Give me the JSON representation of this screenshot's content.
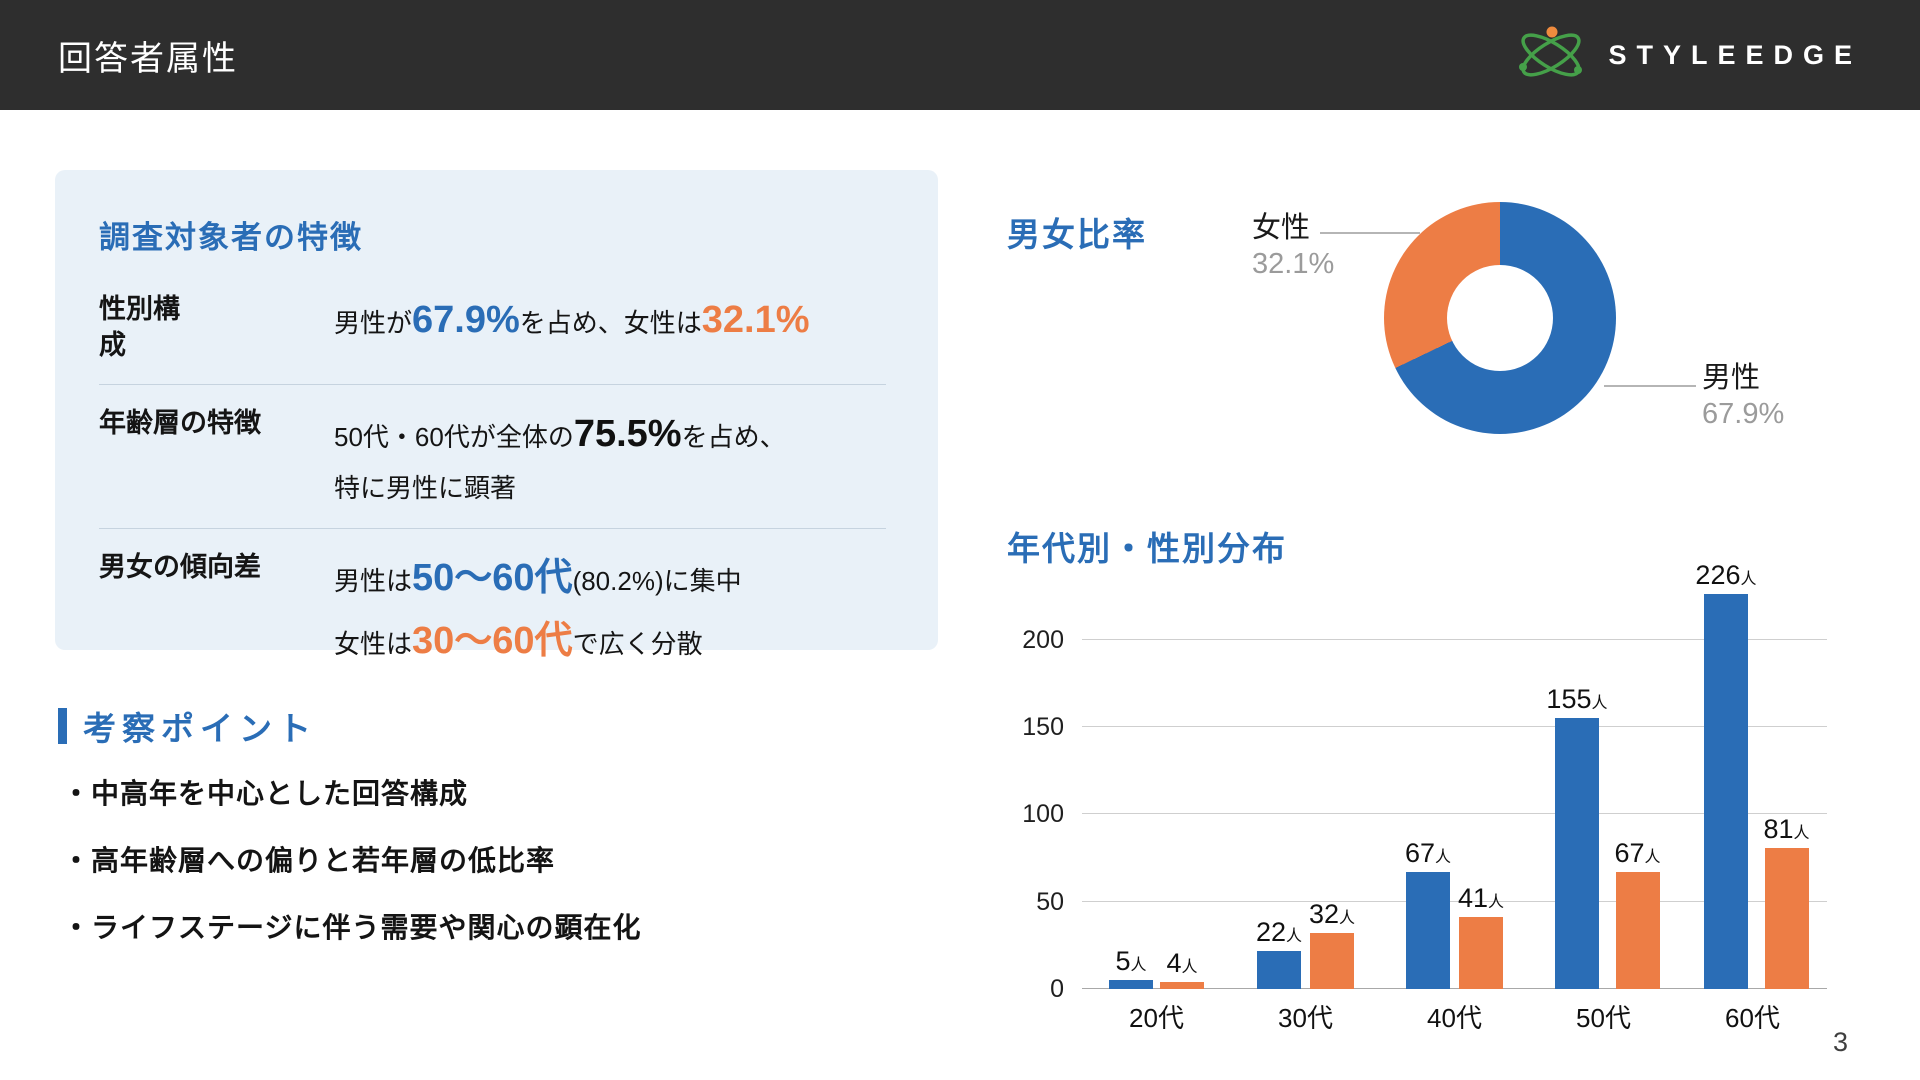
{
  "header": {
    "title": "回答者属性",
    "brand": "STYLEEDGE"
  },
  "features": {
    "title": "調査対象者の特徴",
    "row1": {
      "label": "性別構成",
      "p1": "男性が",
      "v1": "67.9%",
      "p2": "を占め、女性は",
      "v2": "32.1%"
    },
    "row2": {
      "label": "年齢層の特徴",
      "p1": "50代・60代が全体の",
      "v1": "75.5%",
      "p2": "を占め、",
      "line2": "特に男性に顕著"
    },
    "row3": {
      "label": "男女の傾向差",
      "l1a": "男性は",
      "l1v": "50〜60代",
      "l1b": "(80.2%)に集中",
      "l2a": "女性は",
      "l2v": "30〜60代",
      "l2b": "で広く分散"
    }
  },
  "insights": {
    "title": "考察ポイント",
    "bullets": [
      "・中高年を中心とした回答構成",
      "・高年齢層への偏りと若年層の低比率",
      "・ライフステージに伴う需要や関心の顕在化"
    ]
  },
  "gender_chart": {
    "title": "男女比率",
    "female_label": "女性",
    "female_pct": "32.1%",
    "male_label": "男性",
    "male_pct": "67.9%"
  },
  "age_chart": {
    "title": "年代別・性別分布"
  },
  "page_number": "3",
  "colors": {
    "blue": "#2a6db6",
    "orange": "#ed7d45"
  },
  "chart_data": [
    {
      "type": "pie",
      "title": "男女比率",
      "labels": [
        "男性",
        "女性"
      ],
      "values": [
        67.9,
        32.1
      ],
      "colors": [
        "#2a6db6",
        "#ed7d45"
      ],
      "hole": 0.46,
      "legend_position": "outside",
      "annotations": [
        {
          "label": "男性",
          "value": "67.9%"
        },
        {
          "label": "女性",
          "value": "32.1%"
        }
      ]
    },
    {
      "type": "bar",
      "title": "年代別・性別分布",
      "categories": [
        "20代",
        "30代",
        "40代",
        "50代",
        "60代"
      ],
      "series": [
        {
          "name": "男性",
          "values": [
            5,
            22,
            67,
            155,
            226
          ],
          "color": "#2a6db6"
        },
        {
          "name": "女性",
          "values": [
            4,
            32,
            41,
            67,
            81
          ],
          "color": "#ed7d45"
        }
      ],
      "unit": "人",
      "yticks": [
        0,
        50,
        100,
        150,
        200
      ],
      "ylim": [
        0,
        240
      ],
      "grid": true,
      "legend_position": "none"
    }
  ]
}
